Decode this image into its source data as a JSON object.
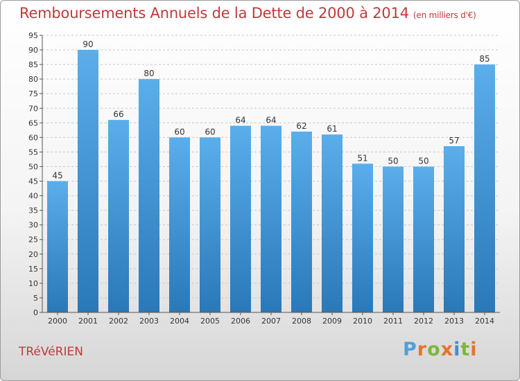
{
  "header": {
    "title": "Remboursements Annuels de la Dette de 2000 à 2014",
    "unit": "(en milliers d'€)"
  },
  "footer": {
    "city": "TRéVéRIEN",
    "logo": "Proxiti"
  },
  "colors": {
    "bar_top": "#5aaeea",
    "bar_bottom": "#2a78b8",
    "title": "#c0393b",
    "grid": "#c8c8c8"
  },
  "chart_data": {
    "type": "bar",
    "categories": [
      "2000",
      "2001",
      "2002",
      "2003",
      "2004",
      "2005",
      "2006",
      "2007",
      "2008",
      "2009",
      "2010",
      "2011",
      "2012",
      "2013",
      "2014"
    ],
    "values": [
      45,
      90,
      66,
      80,
      60,
      60,
      64,
      64,
      62,
      61,
      51,
      50,
      50,
      57,
      85
    ],
    "ylim": [
      0,
      95
    ],
    "ytick_step": 5,
    "grid": true
  }
}
